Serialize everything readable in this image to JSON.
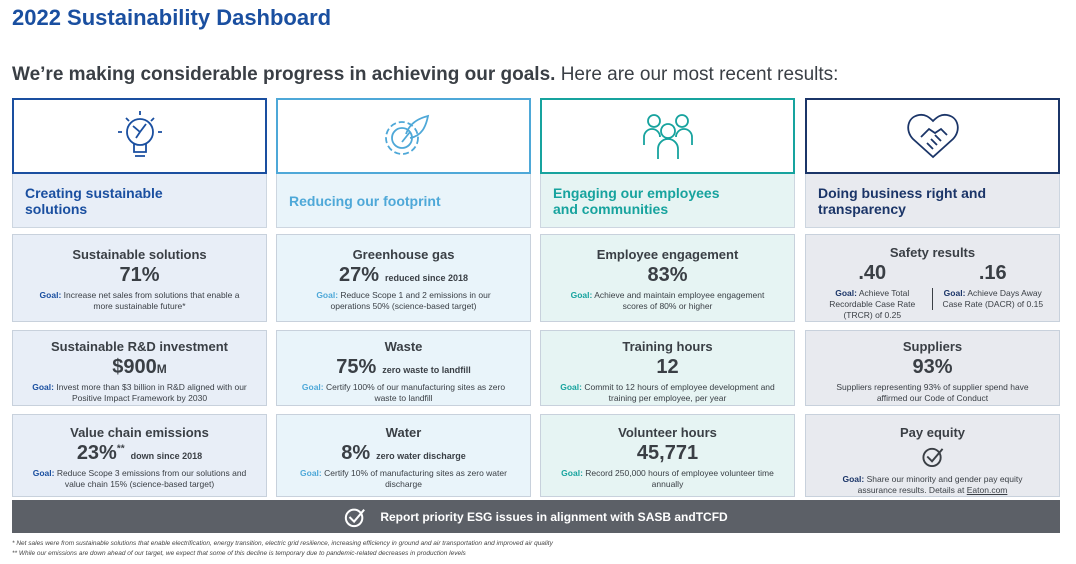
{
  "header": {
    "title": "2022 Sustainability Dashboard",
    "subtitle_bold": "We’re making considerable progress in achieving our goals.",
    "subtitle": "Here are our most recent results:"
  },
  "columns": [
    {
      "label": "Creating sustainable solutions",
      "cards": [
        {
          "title": "Sustainable solutions",
          "value": "71%",
          "goal_label": "Goal:",
          "goal": "Increase net sales from solutions that enable a more sustainable future*"
        },
        {
          "title": "Sustainable R&D investment",
          "value": "$900",
          "unit": "M",
          "goal_label": "Goal:",
          "goal": "Invest more than $3 billion in R&D aligned with our Positive Impact Framework by 2030"
        },
        {
          "title": "Value chain emissions",
          "value": "23%",
          "mark": "**",
          "note": "down since 2018",
          "goal_label": "Goal:",
          "goal": "Reduce Scope 3 emissions from our solutions and value chain 15% (science-based target)"
        }
      ]
    },
    {
      "label": "Reducing our footprint",
      "cards": [
        {
          "title": "Greenhouse gas",
          "value": "27%",
          "note": "reduced since 2018",
          "goal_label": "Goal:",
          "goal": "Reduce Scope 1 and 2 emissions in our operations 50% (science-based target)"
        },
        {
          "title": "Waste",
          "value": "75%",
          "note": "zero waste to landfill",
          "goal_label": "Goal:",
          "goal": "Certify 100% of our manufacturing sites as zero waste to landfill"
        },
        {
          "title": "Water",
          "value": "8%",
          "note": "zero water discharge",
          "goal_label": "Goal:",
          "goal": "Certify 10% of manufacturing sites as zero water discharge"
        }
      ]
    },
    {
      "label": "Engaging our employees and communities",
      "cards": [
        {
          "title": "Employee engagement",
          "value": "83%",
          "goal_label": "Goal:",
          "goal": "Achieve and maintain employee engagement scores of 80% or higher"
        },
        {
          "title": "Training hours",
          "value": "12",
          "goal_label": "Goal:",
          "goal": "Commit to 12 hours of employee development and training per employee, per year"
        },
        {
          "title": "Volunteer hours",
          "value": "45,771",
          "goal_label": "Goal:",
          "goal": "Record 250,000 hours of employee volunteer time annually"
        }
      ]
    },
    {
      "label": "Doing business right and transparency",
      "cards": [
        {
          "title": "Safety results",
          "metrics": [
            {
              "value": ".40",
              "goal_label": "Goal:",
              "goal": "Achieve Total Recordable Case Rate (TRCR) of 0.25"
            },
            {
              "value": ".16",
              "goal_label": "Goal:",
              "goal": "Achieve Days Away Case Rate (DACR) of 0.15"
            }
          ]
        },
        {
          "title": "Suppliers",
          "value": "93%",
          "text": "Suppliers representing 93% of supplier spend have affirmed our Code of Conduct"
        },
        {
          "title": "Pay equity",
          "goal_label": "Goal:",
          "goal": "Share our minority and gender pay equity assurance results. Details at",
          "link": "Eaton.com"
        }
      ]
    }
  ],
  "banner": "Report priority ESG issues in alignment with SASB andTCFD",
  "footnotes": [
    "* Net sales were from sustainable solutions that enable electrification, energy transition, electric grid resilience, increasing efficiency in ground and air transportation and improved air quality",
    "** While our emissions are down ahead of our target, we expect that some of this decline is temporary due to pandemic-related decreases in production levels"
  ]
}
